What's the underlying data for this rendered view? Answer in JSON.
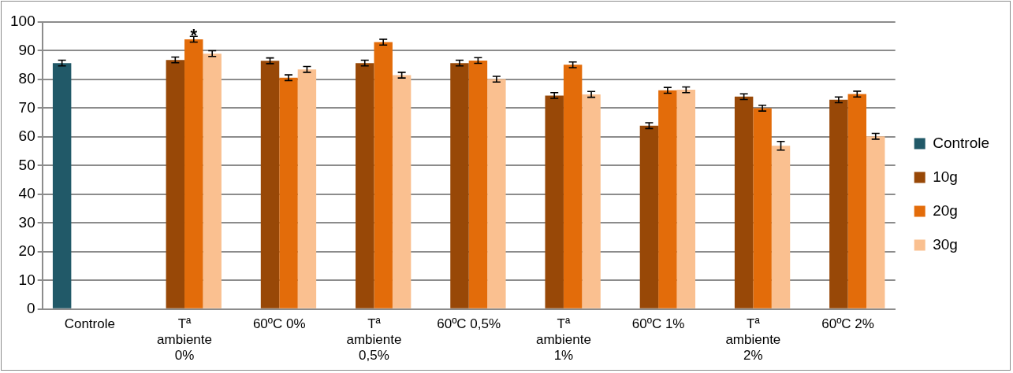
{
  "chart_data": {
    "type": "bar",
    "categories": [
      "Controle",
      "Tª\nambiente\n0%",
      "60ºC 0%",
      "Tª\nambiente\n0,5%",
      "60ºC 0,5%",
      "Tª\nambiente\n1%",
      "60ºC 1%",
      "Tª\nambiente\n2%",
      "60ºC 2%"
    ],
    "series": [
      {
        "name": "Controle",
        "color": "#215968",
        "values": [
          85.7,
          null,
          null,
          null,
          null,
          null,
          null,
          null,
          null
        ],
        "errors": [
          1,
          null,
          null,
          null,
          null,
          null,
          null,
          null,
          null
        ]
      },
      {
        "name": "10g",
        "color": "#984807",
        "values": [
          null,
          86.8,
          86.5,
          85.7,
          85.7,
          74.4,
          63.9,
          74.0,
          72.9
        ],
        "errors": [
          null,
          1,
          1,
          1,
          1,
          1,
          1,
          1,
          1
        ]
      },
      {
        "name": "20g",
        "color": "#e36c0a",
        "values": [
          null,
          94.0,
          80.6,
          93.0,
          86.6,
          85.1,
          76.2,
          70.0,
          74.9
        ],
        "errors": [
          null,
          1,
          1,
          1,
          1,
          1,
          1,
          1,
          1
        ]
      },
      {
        "name": "30g",
        "color": "#fac090",
        "values": [
          null,
          89.0,
          83.5,
          81.5,
          80.1,
          74.8,
          76.4,
          56.9,
          60.2
        ],
        "errors": [
          null,
          1,
          1,
          1,
          1,
          1,
          1,
          1.5,
          1
        ]
      }
    ],
    "annotations": [
      {
        "text": "*",
        "x": "Tª\nambiente\n0%",
        "y": 95
      }
    ],
    "ylim": [
      0,
      100
    ],
    "yticks": [
      0,
      10,
      20,
      30,
      40,
      50,
      60,
      70,
      80,
      90,
      100
    ],
    "grid": "y",
    "legend": "right"
  }
}
